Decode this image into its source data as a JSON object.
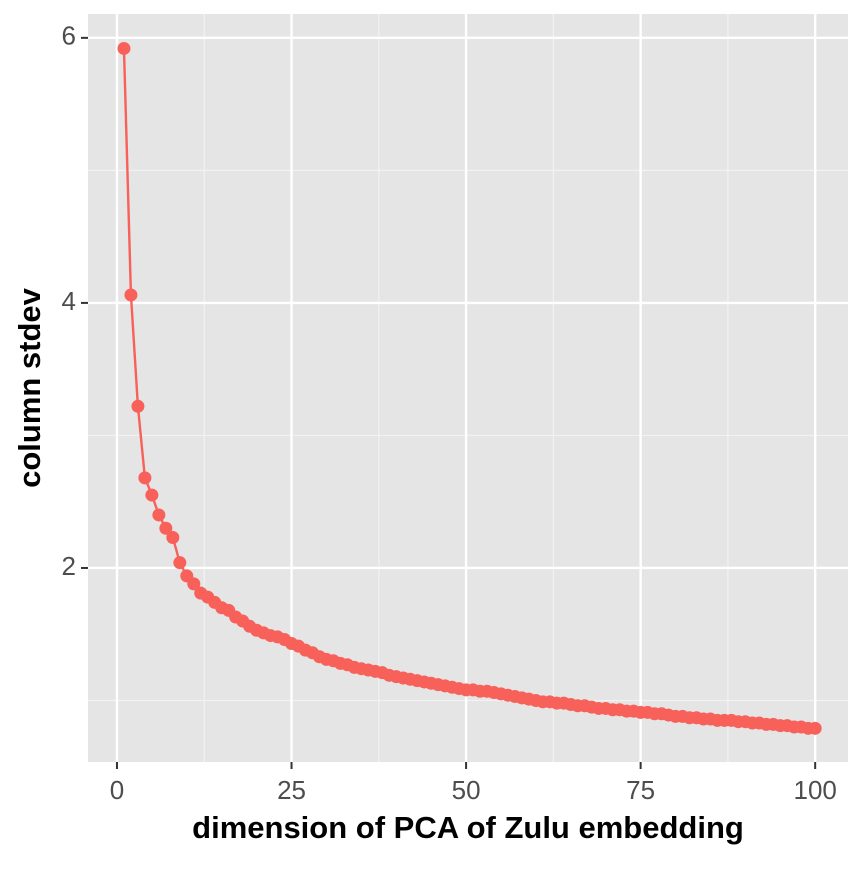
{
  "chart_data": {
    "type": "line",
    "x_label": "dimension of PCA of Zulu embedding",
    "y_label": "column stdev",
    "color": "#f8605a",
    "x": [
      1,
      2,
      3,
      4,
      5,
      6,
      7,
      8,
      9,
      10,
      11,
      12,
      13,
      14,
      15,
      16,
      17,
      18,
      19,
      20,
      21,
      22,
      23,
      24,
      25,
      26,
      27,
      28,
      29,
      30,
      31,
      32,
      33,
      34,
      35,
      36,
      37,
      38,
      39,
      40,
      41,
      42,
      43,
      44,
      45,
      46,
      47,
      48,
      49,
      50,
      51,
      52,
      53,
      54,
      55,
      56,
      57,
      58,
      59,
      60,
      61,
      62,
      63,
      64,
      65,
      66,
      67,
      68,
      69,
      70,
      71,
      72,
      73,
      74,
      75,
      76,
      77,
      78,
      79,
      80,
      81,
      82,
      83,
      84,
      85,
      86,
      87,
      88,
      89,
      90,
      91,
      92,
      93,
      94,
      95,
      96,
      97,
      98,
      99,
      100
    ],
    "values": [
      5.92,
      4.06,
      3.22,
      2.68,
      2.55,
      2.4,
      2.3,
      2.23,
      2.04,
      1.94,
      1.88,
      1.81,
      1.78,
      1.74,
      1.7,
      1.68,
      1.63,
      1.6,
      1.56,
      1.53,
      1.51,
      1.49,
      1.48,
      1.46,
      1.43,
      1.41,
      1.38,
      1.36,
      1.33,
      1.31,
      1.3,
      1.28,
      1.27,
      1.25,
      1.24,
      1.23,
      1.22,
      1.21,
      1.19,
      1.18,
      1.17,
      1.16,
      1.15,
      1.14,
      1.13,
      1.12,
      1.11,
      1.1,
      1.09,
      1.08,
      1.08,
      1.07,
      1.07,
      1.06,
      1.05,
      1.04,
      1.03,
      1.02,
      1.01,
      1.0,
      0.99,
      0.99,
      0.98,
      0.98,
      0.97,
      0.96,
      0.96,
      0.95,
      0.94,
      0.94,
      0.93,
      0.93,
      0.92,
      0.92,
      0.91,
      0.91,
      0.9,
      0.9,
      0.89,
      0.88,
      0.88,
      0.87,
      0.87,
      0.86,
      0.86,
      0.85,
      0.85,
      0.85,
      0.84,
      0.84,
      0.83,
      0.83,
      0.82,
      0.82,
      0.81,
      0.81,
      0.8,
      0.8,
      0.79,
      0.79
    ],
    "xlim": [
      -4.15,
      104.7
    ],
    "ylim": [
      0.536,
      6.18
    ],
    "xticks": [
      0,
      25,
      50,
      75,
      100
    ],
    "yticks": [
      2,
      4,
      6
    ],
    "minor_xticks": [
      12.5,
      37.5,
      62.5,
      87.5
    ],
    "minor_yticks": [
      1,
      3,
      5
    ],
    "grid": true
  }
}
